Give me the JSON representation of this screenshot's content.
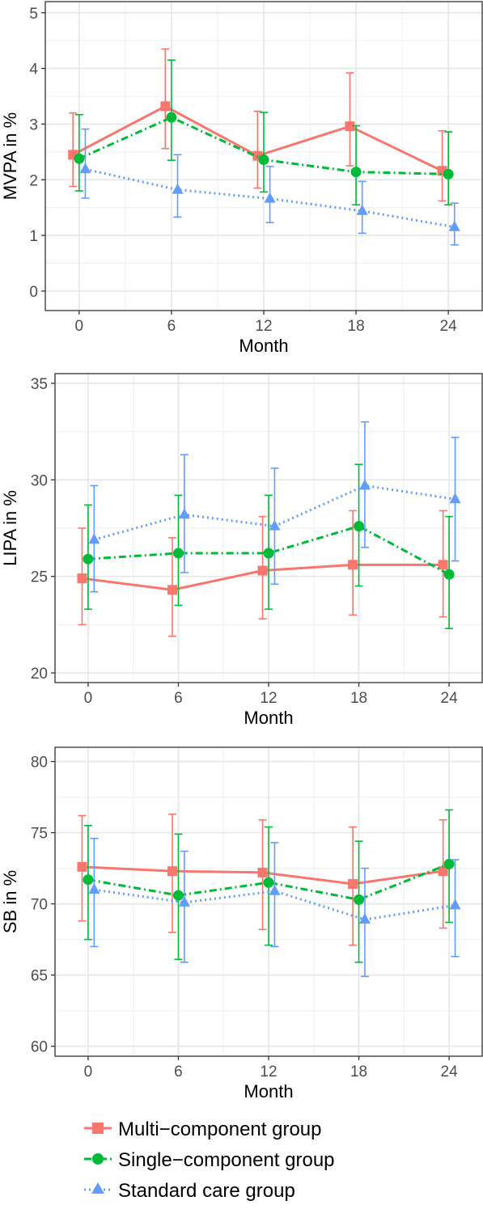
{
  "chart_data": [
    {
      "type": "line",
      "xlabel": "Month",
      "ylabel": "MVPA in %",
      "x": [
        0,
        6,
        12,
        18,
        24
      ],
      "xlim": [
        -2.2,
        26.2
      ],
      "ylim": [
        -0.35,
        5.2
      ],
      "yticks": [
        0,
        1,
        2,
        3,
        4,
        5
      ],
      "grid": true,
      "series": [
        {
          "name": "Multi−component group",
          "values": [
            2.45,
            3.32,
            2.43,
            2.96,
            2.16
          ],
          "lower": [
            1.88,
            2.56,
            1.85,
            2.25,
            1.62
          ],
          "upper": [
            3.2,
            4.35,
            3.23,
            3.92,
            2.88
          ]
        },
        {
          "name": "Single−component group",
          "values": [
            2.38,
            3.12,
            2.36,
            2.14,
            2.1
          ],
          "lower": [
            1.8,
            2.35,
            1.78,
            1.55,
            1.55
          ],
          "upper": [
            3.17,
            4.15,
            3.21,
            2.97,
            2.86
          ]
        },
        {
          "name": "Standard care group",
          "values": [
            2.19,
            1.82,
            1.66,
            1.44,
            1.15
          ],
          "lower": [
            1.67,
            1.33,
            1.23,
            1.04,
            0.83
          ],
          "upper": [
            2.91,
            2.45,
            2.24,
            1.97,
            1.58
          ]
        }
      ]
    },
    {
      "type": "line",
      "xlabel": "Month",
      "ylabel": "LIPA in %",
      "x": [
        0,
        6,
        12,
        18,
        24
      ],
      "xlim": [
        -2.2,
        26.2
      ],
      "ylim": [
        19.5,
        35.5
      ],
      "yticks": [
        20,
        25,
        30,
        35
      ],
      "grid": true,
      "series": [
        {
          "name": "Multi−component group",
          "values": [
            24.9,
            24.3,
            25.3,
            25.6,
            25.6
          ],
          "lower": [
            22.5,
            21.9,
            22.8,
            23.0,
            22.9
          ],
          "upper": [
            27.5,
            27.0,
            28.1,
            28.4,
            28.4
          ]
        },
        {
          "name": "Single−component group",
          "values": [
            25.9,
            26.2,
            26.2,
            27.6,
            25.1
          ],
          "lower": [
            23.3,
            23.5,
            23.3,
            24.5,
            22.3
          ],
          "upper": [
            28.7,
            29.2,
            29.2,
            30.8,
            28.1
          ]
        },
        {
          "name": "Standard care group",
          "values": [
            26.9,
            28.2,
            27.6,
            29.7,
            29.0
          ],
          "lower": [
            24.2,
            25.2,
            24.6,
            26.5,
            25.8
          ],
          "upper": [
            29.7,
            31.3,
            30.6,
            33.0,
            32.2
          ]
        }
      ]
    },
    {
      "type": "line",
      "xlabel": "Month",
      "ylabel": "SB in %",
      "x": [
        0,
        6,
        12,
        18,
        24
      ],
      "xlim": [
        -2.2,
        26.2
      ],
      "ylim": [
        59.3,
        81.0
      ],
      "yticks": [
        60,
        65,
        70,
        75,
        80
      ],
      "grid": true,
      "series": [
        {
          "name": "Multi−component group",
          "values": [
            72.6,
            72.3,
            72.2,
            71.4,
            72.3
          ],
          "lower": [
            68.8,
            68.0,
            68.2,
            67.1,
            68.3
          ],
          "upper": [
            76.2,
            76.3,
            75.9,
            75.4,
            75.9
          ]
        },
        {
          "name": "Single−component group",
          "values": [
            71.7,
            70.6,
            71.5,
            70.3,
            72.8
          ],
          "lower": [
            67.5,
            66.1,
            67.1,
            65.9,
            68.7
          ],
          "upper": [
            75.5,
            74.9,
            75.4,
            74.4,
            76.6
          ]
        },
        {
          "name": "Standard care group",
          "values": [
            71.0,
            70.1,
            70.9,
            68.9,
            69.9
          ],
          "lower": [
            67.0,
            65.9,
            67.0,
            64.9,
            66.3
          ],
          "upper": [
            74.6,
            73.7,
            74.3,
            72.5,
            73.1
          ]
        }
      ]
    }
  ],
  "series_colors": [
    "#F8766D",
    "#00BA38",
    "#619CFF"
  ],
  "series_markers": [
    "square",
    "circle",
    "triangle"
  ],
  "series_linestyles": [
    "solid",
    "dashdot",
    "dotted"
  ],
  "legend": {
    "position": "bottom",
    "items": [
      "Multi−component group",
      "Single−component group",
      "Standard care group"
    ]
  }
}
